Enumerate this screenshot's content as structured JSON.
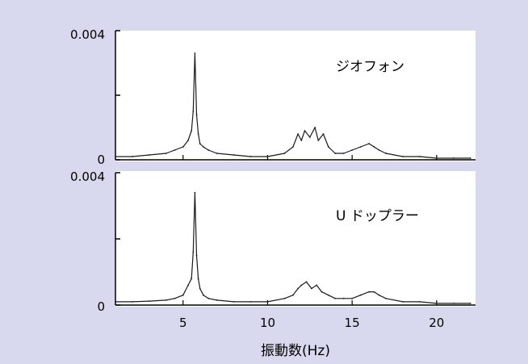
{
  "chart_data": [
    {
      "type": "line",
      "series_label": "ジオフォン",
      "x": [
        1.0,
        2.0,
        3.0,
        4.0,
        4.5,
        5.0,
        5.3,
        5.5,
        5.6,
        5.7,
        5.8,
        5.9,
        6.0,
        6.2,
        6.5,
        7.0,
        8.0,
        9.0,
        10.0,
        11.0,
        11.5,
        11.8,
        12.0,
        12.2,
        12.5,
        12.8,
        13.0,
        13.3,
        13.6,
        14.0,
        14.5,
        15.0,
        15.5,
        16.0,
        16.3,
        16.6,
        17.0,
        18.0,
        19.0,
        20.0,
        21.0,
        22.0
      ],
      "y": [
        0.0001,
        0.0001,
        0.00015,
        0.0002,
        0.0003,
        0.0004,
        0.0006,
        0.0009,
        0.0015,
        0.0033,
        0.0014,
        0.0008,
        0.0005,
        0.0004,
        0.0003,
        0.0002,
        0.00015,
        0.0001,
        0.0001,
        0.0002,
        0.0004,
        0.0008,
        0.0006,
        0.0009,
        0.0007,
        0.001,
        0.0006,
        0.0008,
        0.0004,
        0.0002,
        0.0002,
        0.0003,
        0.0004,
        0.0005,
        0.0004,
        0.0003,
        0.0002,
        0.0001,
        0.0001,
        5e-05,
        5e-05,
        5e-05
      ],
      "xlim": [
        1.0,
        22.3
      ],
      "ylim": [
        0,
        0.004
      ],
      "ytick_labels": [
        "0",
        "0.004"
      ],
      "grid": false
    },
    {
      "type": "line",
      "series_label": "U ドップラー",
      "x": [
        1.0,
        2.0,
        3.0,
        4.0,
        4.5,
        5.0,
        5.3,
        5.5,
        5.6,
        5.7,
        5.8,
        5.9,
        6.0,
        6.2,
        6.5,
        7.0,
        8.0,
        9.0,
        10.0,
        11.0,
        11.5,
        11.8,
        12.0,
        12.3,
        12.6,
        12.9,
        13.2,
        13.6,
        14.0,
        14.5,
        15.0,
        15.5,
        16.0,
        16.3,
        16.6,
        17.0,
        18.0,
        19.0,
        20.0,
        21.0,
        22.0
      ],
      "y": [
        0.0001,
        0.0001,
        0.00012,
        0.00015,
        0.0002,
        0.0003,
        0.0006,
        0.0008,
        0.0016,
        0.0034,
        0.0015,
        0.0008,
        0.0005,
        0.0003,
        0.0002,
        0.00015,
        0.0001,
        0.0001,
        0.0001,
        0.0002,
        0.0003,
        0.0005,
        0.0006,
        0.0007,
        0.0005,
        0.0006,
        0.0004,
        0.0003,
        0.0002,
        0.0002,
        0.0002,
        0.0003,
        0.0004,
        0.0004,
        0.0003,
        0.0002,
        0.0001,
        0.0001,
        5e-05,
        5e-05,
        5e-05
      ],
      "xlim": [
        1.0,
        22.3
      ],
      "ylim": [
        0,
        0.004
      ],
      "ytick_labels": [
        "0",
        "0.004"
      ],
      "grid": false
    }
  ],
  "xaxis": {
    "ticks": [
      5,
      10,
      15,
      20
    ],
    "tick_labels": [
      "5",
      "10",
      "15",
      "20"
    ],
    "label": "振動数(Hz)"
  },
  "colors": {
    "background": "#d8d9ee",
    "plot_area": "#ffffff",
    "line": "#1a1a1a"
  }
}
